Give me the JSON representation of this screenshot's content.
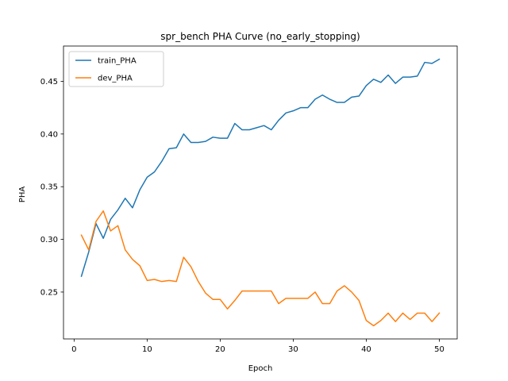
{
  "chart_data": {
    "type": "line",
    "title": "spr_bench PHA Curve (no_early_stopping)",
    "xlabel": "Epoch",
    "ylabel": "PHA",
    "xlim": [
      -1.45,
      52.45
    ],
    "ylim": [
      0.2055,
      0.4835
    ],
    "xticks": [
      0,
      10,
      20,
      30,
      40,
      50
    ],
    "yticks": [
      0.25,
      0.3,
      0.35,
      0.4,
      0.45
    ],
    "ytick_labels": [
      "0.25",
      "0.30",
      "0.35",
      "0.40",
      "0.45"
    ],
    "grid": false,
    "legend_position": "top-left",
    "x": [
      1,
      2,
      3,
      4,
      5,
      6,
      7,
      8,
      9,
      10,
      11,
      12,
      13,
      14,
      15,
      16,
      17,
      18,
      19,
      20,
      21,
      22,
      23,
      24,
      25,
      26,
      27,
      28,
      29,
      30,
      31,
      32,
      33,
      34,
      35,
      36,
      37,
      38,
      39,
      40,
      41,
      42,
      43,
      44,
      45,
      46,
      47,
      48,
      49,
      50
    ],
    "series": [
      {
        "name": "train_PHA",
        "color": "#1f77b4",
        "values": [
          0.265,
          0.288,
          0.315,
          0.301,
          0.319,
          0.328,
          0.339,
          0.33,
          0.347,
          0.359,
          0.364,
          0.374,
          0.386,
          0.387,
          0.4,
          0.392,
          0.392,
          0.393,
          0.397,
          0.396,
          0.396,
          0.41,
          0.404,
          0.404,
          0.406,
          0.408,
          0.404,
          0.413,
          0.42,
          0.422,
          0.425,
          0.425,
          0.433,
          0.437,
          0.433,
          0.43,
          0.43,
          0.435,
          0.436,
          0.446,
          0.452,
          0.449,
          0.456,
          0.448,
          0.454,
          0.454,
          0.455,
          0.468,
          0.467,
          0.471
        ]
      },
      {
        "name": "dev_PHA",
        "color": "#ff7f0e",
        "values": [
          0.304,
          0.29,
          0.317,
          0.327,
          0.308,
          0.313,
          0.29,
          0.281,
          0.275,
          0.261,
          0.262,
          0.26,
          0.261,
          0.26,
          0.283,
          0.274,
          0.26,
          0.249,
          0.243,
          0.243,
          0.234,
          0.242,
          0.251,
          0.251,
          0.251,
          0.251,
          0.251,
          0.239,
          0.244,
          0.244,
          0.244,
          0.244,
          0.25,
          0.239,
          0.239,
          0.251,
          0.256,
          0.25,
          0.242,
          0.223,
          0.218,
          0.223,
          0.23,
          0.222,
          0.23,
          0.224,
          0.23,
          0.23,
          0.222,
          0.23
        ]
      }
    ]
  }
}
